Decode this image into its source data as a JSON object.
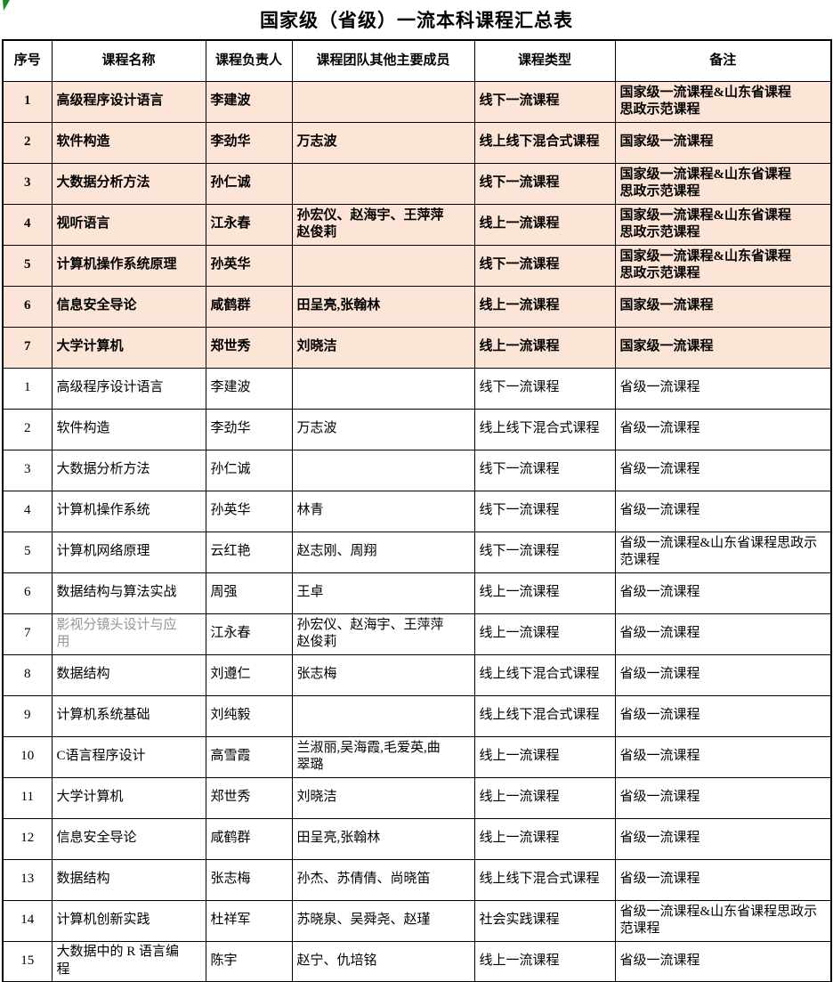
{
  "title": "国家级（省级）一流本科课程汇总表",
  "columns": [
    "序号",
    "课程名称",
    "课程负责人",
    "课程团队其他主要成员",
    "课程类型",
    "备注"
  ],
  "sections": {
    "national": {
      "rows": [
        {
          "no": "1",
          "name": "高级程序设计语言",
          "leader": "李建波",
          "team": "",
          "type": "线下一流课程",
          "remark": "国家级一流课程&山东省课程\n思政示范课程"
        },
        {
          "no": "2",
          "name": "软件构造",
          "leader": "李劲华",
          "team": "万志波",
          "type": "线上线下混合式课程",
          "remark": "国家级一流课程"
        },
        {
          "no": "3",
          "name": "大数据分析方法",
          "leader": "孙仁诚",
          "team": "",
          "type": "线下一流课程",
          "remark": "国家级一流课程&山东省课程\n思政示范课程"
        },
        {
          "no": "4",
          "name": "视听语言",
          "leader": "江永春",
          "team": "孙宏仪、赵海宇、王萍萍\n赵俊莉",
          "type": "线上一流课程",
          "remark": "国家级一流课程&山东省课程\n思政示范课程"
        },
        {
          "no": "5",
          "name": "计算机操作系统原理",
          "leader": "孙英华",
          "team": "",
          "type": "线下一流课程",
          "remark": "国家级一流课程&山东省课程\n思政示范课程"
        },
        {
          "no": "6",
          "name": "信息安全导论",
          "leader": "咸鹤群",
          "team": "田呈亮,张翰林",
          "type": "线上一流课程",
          "remark": "国家级一流课程"
        },
        {
          "no": "7",
          "name": "大学计算机",
          "leader": "郑世秀",
          "team": "刘晓洁",
          "type": "线上一流课程",
          "remark": "国家级一流课程"
        }
      ]
    },
    "provincial": {
      "rows": [
        {
          "no": "1",
          "name": "高级程序设计语言",
          "leader": "李建波",
          "team": "",
          "type": "线下一流课程",
          "remark": "省级一流课程"
        },
        {
          "no": "2",
          "name": "软件构造",
          "leader": "李劲华",
          "team": "万志波",
          "type": "线上线下混合式课程",
          "remark": "省级一流课程"
        },
        {
          "no": "3",
          "name": "大数据分析方法",
          "leader": "孙仁诚",
          "team": "",
          "type": "线下一流课程",
          "remark": "省级一流课程"
        },
        {
          "no": "4",
          "name": "计算机操作系统",
          "leader": "孙英华",
          "team": "林青",
          "type": "线下一流课程",
          "remark": "省级一流课程"
        },
        {
          "no": "5",
          "name": "计算机网络原理",
          "leader": "云红艳",
          "team": "赵志刚、周翔",
          "type": "线下一流课程",
          "remark": "省级一流课程&山东省课程思政示\n范课程"
        },
        {
          "no": "6",
          "name": "数据结构与算法实战",
          "leader": "周强",
          "team": "王卓",
          "type": "线上一流课程",
          "remark": "省级一流课程"
        },
        {
          "no": "7",
          "name": "影视分镜头设计与应\n用",
          "muted": true,
          "leader": "江永春",
          "team": "孙宏仪、赵海宇、王萍萍\n赵俊莉",
          "type": "线上一流课程",
          "remark": "省级一流课程"
        },
        {
          "no": "8",
          "name": "数据结构",
          "leader": "刘遵仁",
          "team": "张志梅",
          "type": "线上线下混合式课程",
          "remark": "省级一流课程"
        },
        {
          "no": "9",
          "name": "计算机系统基础",
          "leader": "刘纯毅",
          "team": "",
          "type": "线上线下混合式课程",
          "remark": "省级一流课程"
        },
        {
          "no": "10",
          "name": "C语言程序设计",
          "leader": "高雪霞",
          "team": "兰淑丽,吴海霞,毛爱英,曲\n翠璐",
          "type": "线上一流课程",
          "remark": "省级一流课程"
        },
        {
          "no": "11",
          "name": "大学计算机",
          "leader": "郑世秀",
          "team": "刘晓洁",
          "type": "线上一流课程",
          "remark": "省级一流课程"
        },
        {
          "no": "12",
          "name": "信息安全导论",
          "leader": "咸鹤群",
          "team": "田呈亮,张翰林",
          "type": "线上一流课程",
          "remark": "省级一流课程"
        },
        {
          "no": "13",
          "name": "数据结构",
          "leader": "张志梅",
          "team": "孙杰、苏倩倩、尚晓笛",
          "type": "线上线下混合式课程",
          "remark": "省级一流课程"
        },
        {
          "no": "14",
          "name": "计算机创新实践",
          "leader": "杜祥军",
          "team": "苏晓泉、吴舜尧、赵瑾",
          "type": "社会实践课程",
          "remark": "省级一流课程&山东省课程思政示\n范课程"
        },
        {
          "no": "15",
          "name": "大数据中的 R 语言编\n程",
          "leader": "陈宇",
          "team": "赵宁、仇培铭",
          "type": "线上一流课程",
          "remark": "省级一流课程"
        }
      ]
    }
  },
  "colors": {
    "national_row_bg": "#fce4d6",
    "border": "#000000",
    "muted_text": "#969696",
    "corner_mark_green": "#1f8a1f",
    "page_bg": "#ffffff",
    "text": "#000000"
  },
  "icons": {
    "corner_mark": "green-corner-leaf"
  }
}
